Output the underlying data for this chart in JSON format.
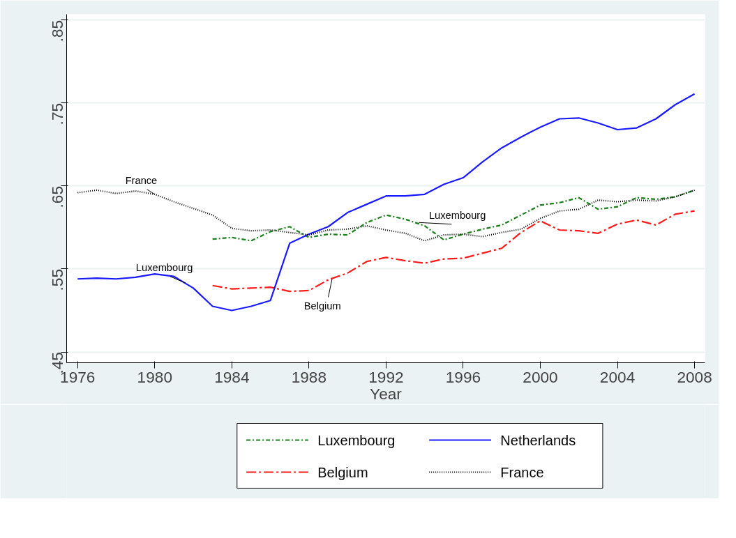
{
  "chart_data": {
    "type": "line",
    "xlabel": "Year",
    "x": [
      1976,
      1977,
      1978,
      1979,
      1980,
      1981,
      1982,
      1983,
      1984,
      1985,
      1986,
      1987,
      1988,
      1989,
      1990,
      1991,
      1992,
      1993,
      1994,
      1995,
      1996,
      1997,
      1998,
      1999,
      2000,
      2001,
      2002,
      2003,
      2004,
      2005,
      2006,
      2007,
      2008
    ],
    "series": [
      {
        "name": "Luxembourg",
        "color": "#1a7f1a",
        "line_style": "dashdot",
        "values": [
          null,
          null,
          null,
          null,
          null,
          null,
          null,
          0.586,
          0.588,
          0.584,
          0.595,
          0.601,
          0.588,
          0.592,
          0.591,
          0.606,
          0.615,
          0.61,
          0.602,
          0.585,
          0.592,
          0.598,
          0.603,
          0.615,
          0.627,
          0.63,
          0.636,
          0.622,
          0.625,
          0.636,
          0.634,
          0.637,
          0.645
        ]
      },
      {
        "name": "Belgium",
        "color": "#ff1a1a",
        "line_style": "longdashdot",
        "values": [
          null,
          null,
          null,
          null,
          null,
          null,
          null,
          0.53,
          0.526,
          0.527,
          0.528,
          0.523,
          0.524,
          0.537,
          0.545,
          0.559,
          0.564,
          0.56,
          0.557,
          0.562,
          0.563,
          0.569,
          0.575,
          0.594,
          0.608,
          0.597,
          0.596,
          0.593,
          0.604,
          0.609,
          0.603,
          0.616,
          0.62
        ]
      },
      {
        "name": "Netherlands",
        "color": "#1a1aff",
        "line_style": "solid",
        "values": [
          0.538,
          0.539,
          0.538,
          0.54,
          0.544,
          0.541,
          0.527,
          0.505,
          0.5,
          0.505,
          0.512,
          0.581,
          0.592,
          0.601,
          0.618,
          0.628,
          0.638,
          0.638,
          0.64,
          0.652,
          0.66,
          0.679,
          0.696,
          0.709,
          0.721,
          0.731,
          0.732,
          0.726,
          0.718,
          0.72,
          0.731,
          0.748,
          0.761
        ]
      },
      {
        "name": "France",
        "color": "#000000",
        "line_style": "dotted",
        "values": [
          0.642,
          0.645,
          0.641,
          0.644,
          0.64,
          0.631,
          0.623,
          0.615,
          0.599,
          0.596,
          0.597,
          0.594,
          0.591,
          0.597,
          0.598,
          0.602,
          0.597,
          0.593,
          0.584,
          0.591,
          0.592,
          0.589,
          0.594,
          0.598,
          0.611,
          0.62,
          0.622,
          0.633,
          0.631,
          0.633,
          0.632,
          0.637,
          0.645
        ]
      }
    ],
    "annotations": [
      {
        "text": "France",
        "x": 1980,
        "y": 0.64
      },
      {
        "text": "Luxembourg",
        "x": 1981.6,
        "y": 0.533
      },
      {
        "text": "Belgium",
        "x": 1989.2,
        "y": 0.538
      },
      {
        "text": "Luxembourg",
        "x": 1993.7,
        "y": 0.606
      }
    ],
    "xlim": [
      1975.43,
      2008.54
    ],
    "ylim": [
      0.437,
      0.857
    ],
    "xticks": [
      1976,
      1980,
      1984,
      1988,
      1992,
      1996,
      2000,
      2004,
      2008
    ],
    "yticks": [
      {
        "value": 0.45,
        "label": ".45"
      },
      {
        "value": 0.55,
        "label": ".55"
      },
      {
        "value": 0.65,
        "label": ".65"
      },
      {
        "value": 0.75,
        "label": ".75"
      },
      {
        "value": 0.85,
        "label": ".85"
      }
    ],
    "grid": "y",
    "legend": "bottom"
  }
}
